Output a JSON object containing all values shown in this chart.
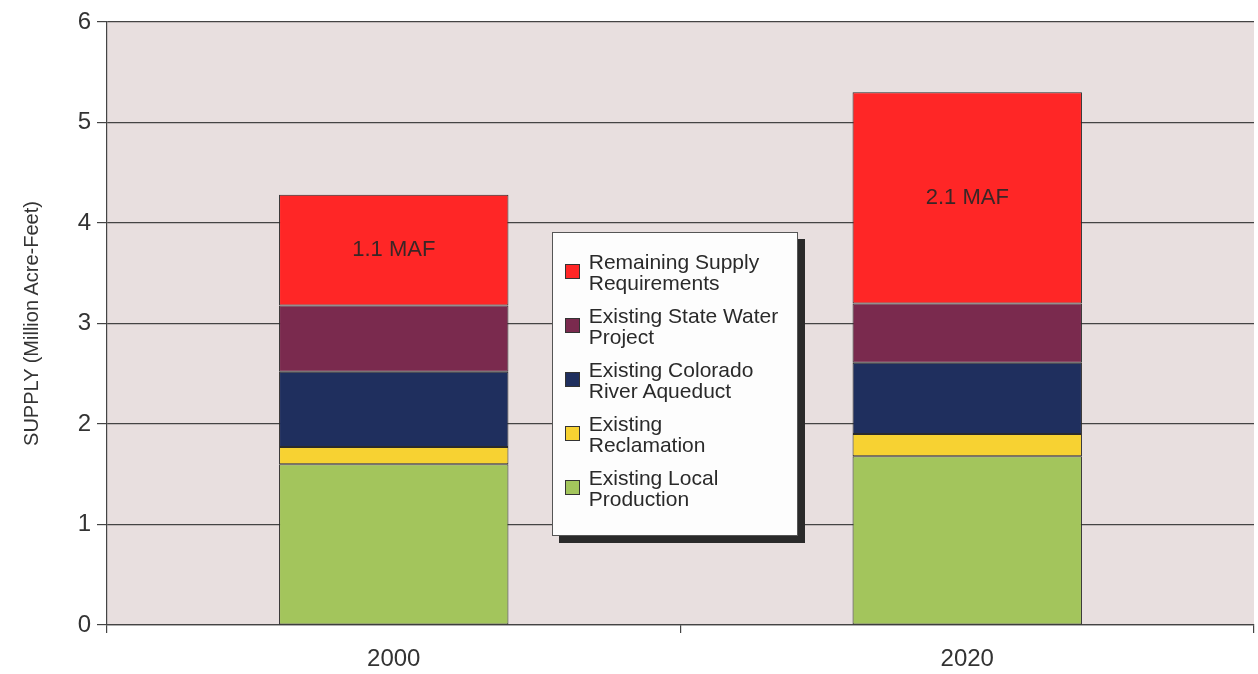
{
  "chart_data": {
    "type": "bar",
    "stacked": true,
    "ylabel": "SUPPLY (Million Acre-Feet)",
    "categories": [
      "2000",
      "2020"
    ],
    "series": [
      {
        "name": "Existing Local Production",
        "color": "#a3c55c",
        "values": [
          1.6,
          1.68
        ]
      },
      {
        "name": "Existing Reclamation",
        "color": "#f7d232",
        "values": [
          0.17,
          0.22
        ]
      },
      {
        "name": "Existing Colorado River Aqueduct",
        "color": "#1f2f5e",
        "values": [
          0.75,
          0.71
        ]
      },
      {
        "name": "Existing State Water Project",
        "color": "#7a2a4e",
        "values": [
          0.66,
          0.59
        ]
      },
      {
        "name": "Remaining Supply Requirements",
        "color": "#ff2626",
        "values": [
          1.1,
          2.1
        ],
        "value_labels": [
          "1.1 MAF",
          "2.1 MAF"
        ]
      }
    ],
    "ylim": [
      0,
      6
    ],
    "yticks": [
      0,
      1,
      2,
      3,
      4,
      5,
      6
    ],
    "grid": "y",
    "legend": "center"
  }
}
